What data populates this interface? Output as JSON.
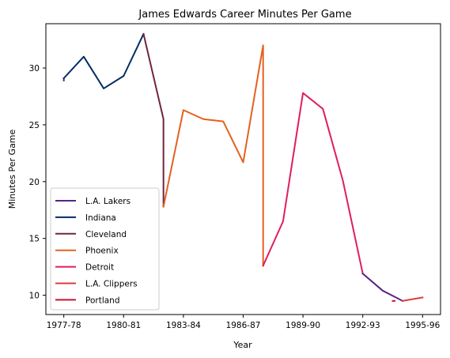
{
  "chart_data": {
    "type": "line",
    "title": "James Edwards  Career Minutes Per Game",
    "xlabel": "Year",
    "ylabel": "Minutes Per Game",
    "x_categories": [
      "1977-78",
      "1978-79",
      "1979-80",
      "1980-81",
      "1981-82",
      "1982-83",
      "1983-84",
      "1984-85",
      "1985-86",
      "1986-87",
      "1987-88",
      "1988-89",
      "1989-90",
      "1990-91",
      "1991-92",
      "1992-93",
      "1993-94",
      "1994-95",
      "1995-96"
    ],
    "x_tick_labels": [
      "1977-78",
      "1980-81",
      "1983-84",
      "1986-87",
      "1989-90",
      "1992-93",
      "1995-96"
    ],
    "x_tick_positions": [
      0,
      3,
      6,
      9,
      12,
      15,
      18
    ],
    "y_ticks": [
      10,
      15,
      20,
      25,
      30
    ],
    "xlim": [
      -0.9,
      18.9
    ],
    "ylim": [
      8.3,
      33.9
    ],
    "grid": false,
    "legend_position": "lower-left",
    "series": [
      {
        "name": "L.A. Lakers",
        "color": "#552583",
        "points": [
          [
            0,
            28.9
          ],
          [
            0,
            29.1
          ]
        ]
      },
      {
        "name": "Indiana",
        "color": "#002d62",
        "points": [
          [
            0,
            29.1
          ],
          [
            1,
            31.0
          ],
          [
            2,
            28.2
          ],
          [
            3,
            29.3
          ],
          [
            4,
            33.0
          ]
        ]
      },
      {
        "name": "Cleveland",
        "color": "#6f263d",
        "points": [
          [
            4,
            33.0
          ],
          [
            5,
            25.5
          ],
          [
            5,
            17.8
          ]
        ]
      },
      {
        "name": "Phoenix",
        "color": "#e56020",
        "points": [
          [
            5,
            17.8
          ],
          [
            6,
            26.3
          ],
          [
            7,
            25.5
          ],
          [
            8,
            25.3
          ],
          [
            9,
            21.7
          ],
          [
            10,
            32.0
          ],
          [
            10,
            12.6
          ]
        ]
      },
      {
        "name": "Detroit",
        "color": "#e01e5a",
        "points": [
          [
            10,
            12.6
          ],
          [
            11,
            16.5
          ],
          [
            12,
            27.8
          ],
          [
            13,
            26.4
          ],
          [
            14,
            20.1
          ],
          [
            15,
            11.9
          ]
        ]
      },
      {
        "name": "L.A. Lakers",
        "color": "#552583",
        "legend": false,
        "points": [
          [
            15,
            11.9
          ],
          [
            16,
            10.4
          ],
          [
            17,
            9.5
          ]
        ]
      },
      {
        "name": "L.A. Clippers",
        "color": "#e03a3e",
        "points": [
          [
            17,
            9.5
          ],
          [
            18,
            9.8
          ]
        ]
      },
      {
        "name": "Portland",
        "color": "#c8102e",
        "points": [
          [
            16.5,
            9.5
          ],
          [
            16.6,
            9.5
          ]
        ]
      }
    ]
  }
}
